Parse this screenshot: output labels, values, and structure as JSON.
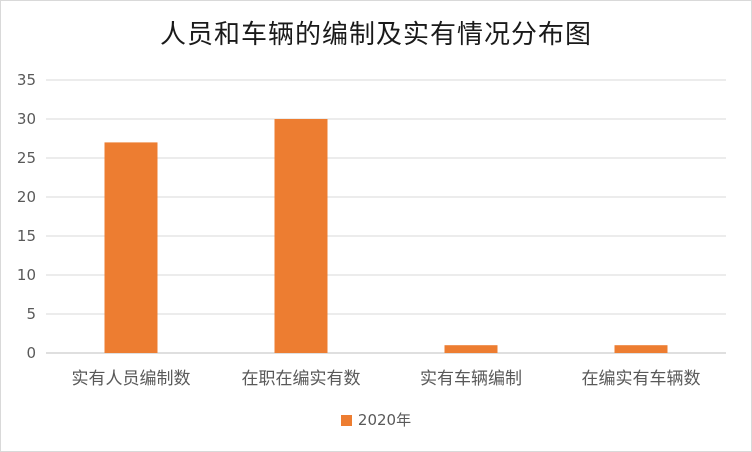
{
  "chart_data": {
    "type": "bar",
    "title": "人员和车辆的编制及实有情况分布图",
    "categories": [
      "实有人员编制数",
      "在职在编实有数",
      "实有车辆编制",
      "在编实有车辆数"
    ],
    "series": [
      {
        "name": "2020年",
        "values": [
          27,
          30,
          1,
          1
        ],
        "color": "#ED7D31"
      }
    ],
    "ylim": [
      0,
      35
    ],
    "yticks": [
      0,
      5,
      10,
      15,
      20,
      25,
      30,
      35
    ],
    "grid": true,
    "legend": "bottom",
    "gridline_color": "#d9d9d9",
    "axis_color": "#bfbfbf"
  }
}
